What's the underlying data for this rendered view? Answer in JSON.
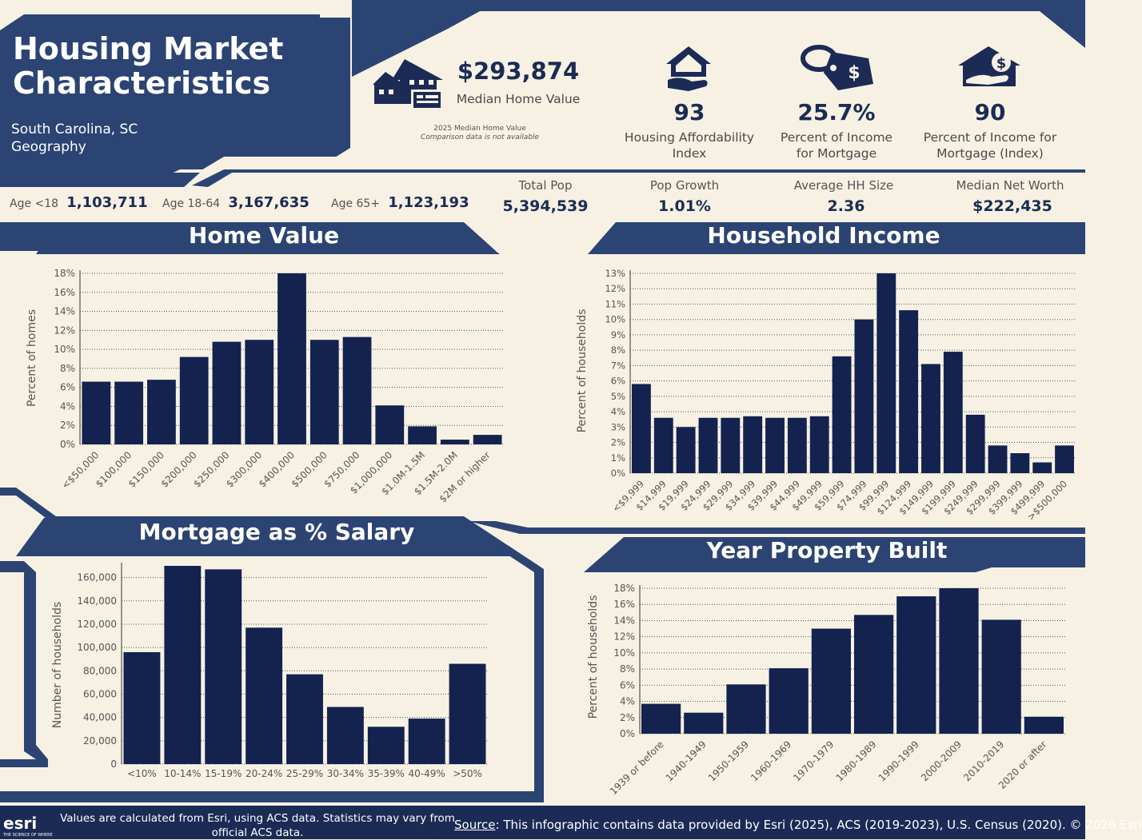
{
  "header": {
    "title": "Housing Market Characteristics",
    "geography_line1": "South Carolina, SC",
    "geography_line2": "Geography"
  },
  "median_home_value": {
    "value": "$293,874",
    "label": "Median Home Value",
    "note_line1": "2025 Median Home Value",
    "note_line2": "Comparison data is not available"
  },
  "kpis": [
    {
      "value": "93",
      "label_line1": "Housing Affordability",
      "label_line2": "Index",
      "icon": "house-hand-icon"
    },
    {
      "value": "25.7%",
      "label_line1": "Percent of Income",
      "label_line2": "for Mortgage",
      "icon": "price-tag-icon"
    },
    {
      "value": "90",
      "label_line1": "Percent of Income for",
      "label_line2": "Mortgage (Index)",
      "icon": "hand-house-dollar-icon"
    }
  ],
  "ages": [
    {
      "label": "Age <18",
      "value": "1,103,711"
    },
    {
      "label": "Age 18-64",
      "value": "3,167,635"
    },
    {
      "label": "Age 65+",
      "value": "1,123,193"
    }
  ],
  "stats": [
    {
      "label": "Total Pop",
      "value": "5,394,539"
    },
    {
      "label": "Pop Growth",
      "value": "1.01%"
    },
    {
      "label": "Average HH Size",
      "value": "2.36"
    },
    {
      "label": "Median Net Worth",
      "value": "$222,435"
    }
  ],
  "sections": {
    "home_value": "Home Value",
    "household_income": "Household Income",
    "mortgage_salary": "Mortgage as % Salary",
    "year_built": "Year Property Built"
  },
  "footer": {
    "left_line1": "Values are calculated from Esri, using ACS data. Statistics may vary from",
    "left_line2": "official ACS data.",
    "source_label": "Source",
    "source_text": ": This infographic contains data provided by Esri (2025), ACS (2019-2023), U.S. Census (2020). © 2026 Esri",
    "logo": "esri",
    "logo_sub": "THE SCIENCE OF WHERE"
  },
  "colors": {
    "navy": "#1b2b55",
    "bar": "#13224f",
    "cream": "#f6f1e3",
    "band": "#2c4474"
  },
  "chart_data": [
    {
      "id": "home_value",
      "type": "bar",
      "ylabel": "Percent of homes",
      "xlabel": "",
      "ylim": [
        0,
        18
      ],
      "yticks": [
        0,
        2,
        4,
        6,
        8,
        10,
        12,
        14,
        16,
        18
      ],
      "ytick_labels": [
        "0%",
        "2%",
        "4%",
        "6%",
        "8%",
        "10%",
        "12%",
        "14%",
        "16%",
        "18%"
      ],
      "grid": true,
      "categories": [
        "<$50,000",
        "$100,000",
        "$150,000",
        "$200,000",
        "$250,000",
        "$300,000",
        "$400,000",
        "$500,000",
        "$750,000",
        "$1,000,000",
        "$1.0M-1.5M",
        "$1.5M-2.0M",
        "$2M or higher"
      ],
      "values": [
        6.6,
        6.6,
        6.8,
        9.2,
        10.8,
        11.0,
        18.2,
        11.0,
        11.3,
        4.1,
        1.9,
        0.5,
        1.0
      ]
    },
    {
      "id": "household_income",
      "type": "bar",
      "ylabel": "Percent of households",
      "xlabel": "",
      "ylim": [
        0,
        13
      ],
      "yticks": [
        0,
        1,
        2,
        3,
        4,
        5,
        6,
        7,
        8,
        9,
        10,
        11,
        12,
        13
      ],
      "ytick_labels": [
        "0%",
        "1%",
        "2%",
        "3%",
        "4%",
        "5%",
        "6%",
        "7%",
        "8%",
        "9%",
        "10%",
        "11%",
        "12%",
        "13%"
      ],
      "grid": true,
      "categories": [
        "<$9,999",
        "$14,999",
        "$19,999",
        "$24,999",
        "$29,999",
        "$34,999",
        "$39,999",
        "$44,999",
        "$49,999",
        "$59,999",
        "$74,999",
        "$99,999",
        "$124,999",
        "$149,999",
        "$199,999",
        "$249,999",
        "$299,999",
        "$399,999",
        "$499,999",
        ">$500,000"
      ],
      "values": [
        5.8,
        3.6,
        3.0,
        3.6,
        3.6,
        3.7,
        3.6,
        3.6,
        3.7,
        7.6,
        10.0,
        13.2,
        10.6,
        7.1,
        7.9,
        3.8,
        1.8,
        1.3,
        0.7,
        1.8
      ]
    },
    {
      "id": "mortgage_salary",
      "type": "bar",
      "ylabel": "Number of households",
      "xlabel": "",
      "ylim": [
        0,
        170000
      ],
      "yticks": [
        0,
        20000,
        40000,
        60000,
        80000,
        100000,
        120000,
        140000,
        160000
      ],
      "ytick_labels": [
        "0",
        "20,000",
        "40,000",
        "60,000",
        "80,000",
        "100,000",
        "120,000",
        "140,000",
        "160,000"
      ],
      "grid": true,
      "categories": [
        "<10%",
        "10-14%",
        "15-19%",
        "20-24%",
        "25-29%",
        "30-34%",
        "35-39%",
        "40-49%",
        ">50%"
      ],
      "values": [
        96000,
        173000,
        167000,
        117000,
        77000,
        49000,
        32000,
        39000,
        86000
      ]
    },
    {
      "id": "year_built",
      "type": "bar",
      "ylabel": "Percent of households",
      "xlabel": "",
      "ylim": [
        0,
        18
      ],
      "yticks": [
        0,
        2,
        4,
        6,
        8,
        10,
        12,
        14,
        16,
        18
      ],
      "ytick_labels": [
        "0%",
        "2%",
        "4%",
        "6%",
        "8%",
        "10%",
        "12%",
        "14%",
        "16%",
        "18%"
      ],
      "grid": true,
      "categories": [
        "1939 or before",
        "1940-1949",
        "1950-1959",
        "1960-1969",
        "1970-1979",
        "1980-1989",
        "1990-1999",
        "2000-2009",
        "2010-2019",
        "2020 or after"
      ],
      "values": [
        3.7,
        2.6,
        6.1,
        8.1,
        13.0,
        14.7,
        17.0,
        18.3,
        14.1,
        2.1
      ]
    }
  ]
}
